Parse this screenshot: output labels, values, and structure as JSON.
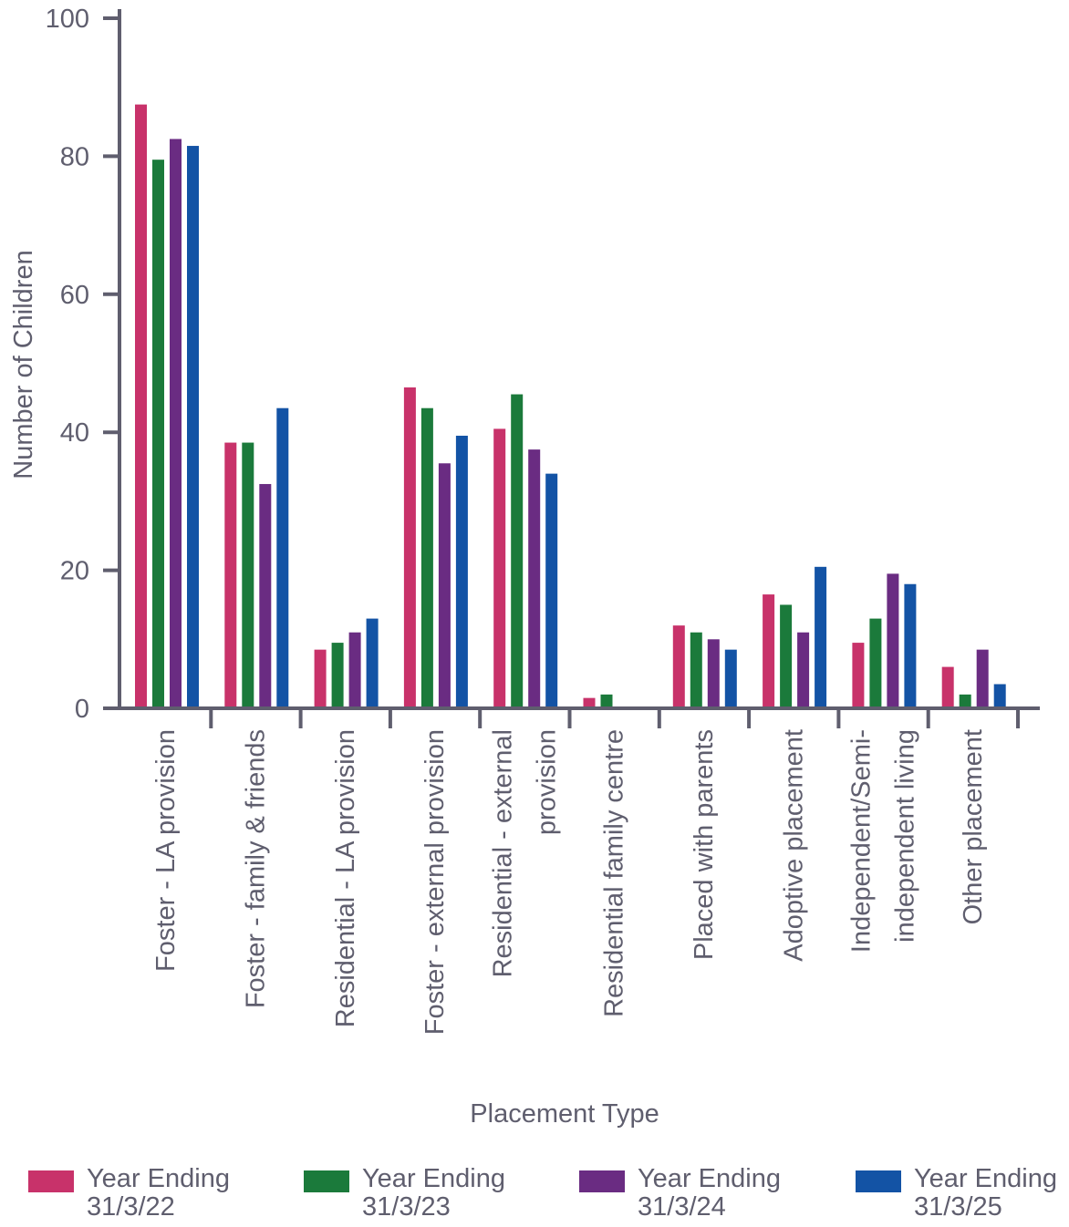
{
  "chart_data": {
    "type": "bar",
    "xlabel": "Placement Type",
    "ylabel": "Number of Children",
    "ylim": [
      0,
      100
    ],
    "yticks": [
      "0",
      "20",
      "40",
      "60",
      "80",
      "100"
    ],
    "grid": false,
    "legend_position": "bottom",
    "categories": [
      [
        "Foster - LA provision"
      ],
      [
        "Foster - family & friends"
      ],
      [
        "Residential - LA provision"
      ],
      [
        "Foster - external provision"
      ],
      [
        "Residential - external",
        "provision"
      ],
      [
        "Residential family centre"
      ],
      [
        "Placed with parents"
      ],
      [
        "Adoptive placement"
      ],
      [
        "Independent/Semi-",
        "independent living"
      ],
      [
        "Other placement"
      ]
    ],
    "series": [
      {
        "name": "Year Ending 31/3/22",
        "label_lines": [
          "Year Ending",
          "31/3/22"
        ],
        "color": "#c8326a",
        "values": [
          87.5,
          38.5,
          8.5,
          46.5,
          40.5,
          1.5,
          12,
          16.5,
          9.5,
          6
        ]
      },
      {
        "name": "Year Ending 31/3/23",
        "label_lines": [
          "Year Ending",
          "31/3/23"
        ],
        "color": "#1b7a3b",
        "values": [
          79.5,
          38.5,
          9.5,
          43.5,
          45.5,
          2,
          11,
          15,
          13,
          2
        ]
      },
      {
        "name": "Year Ending 31/3/24",
        "label_lines": [
          "Year Ending",
          "31/3/24"
        ],
        "color": "#6a2c82",
        "values": [
          82.5,
          32.5,
          11,
          35.5,
          37.5,
          0,
          10,
          11,
          19.5,
          8.5
        ]
      },
      {
        "name": "Year Ending 31/3/25",
        "label_lines": [
          "Year Ending",
          "31/3/25"
        ],
        "color": "#1353a5",
        "values": [
          81.5,
          43.5,
          13,
          39.5,
          34,
          0,
          8.5,
          20.5,
          18,
          3.5
        ]
      }
    ]
  }
}
